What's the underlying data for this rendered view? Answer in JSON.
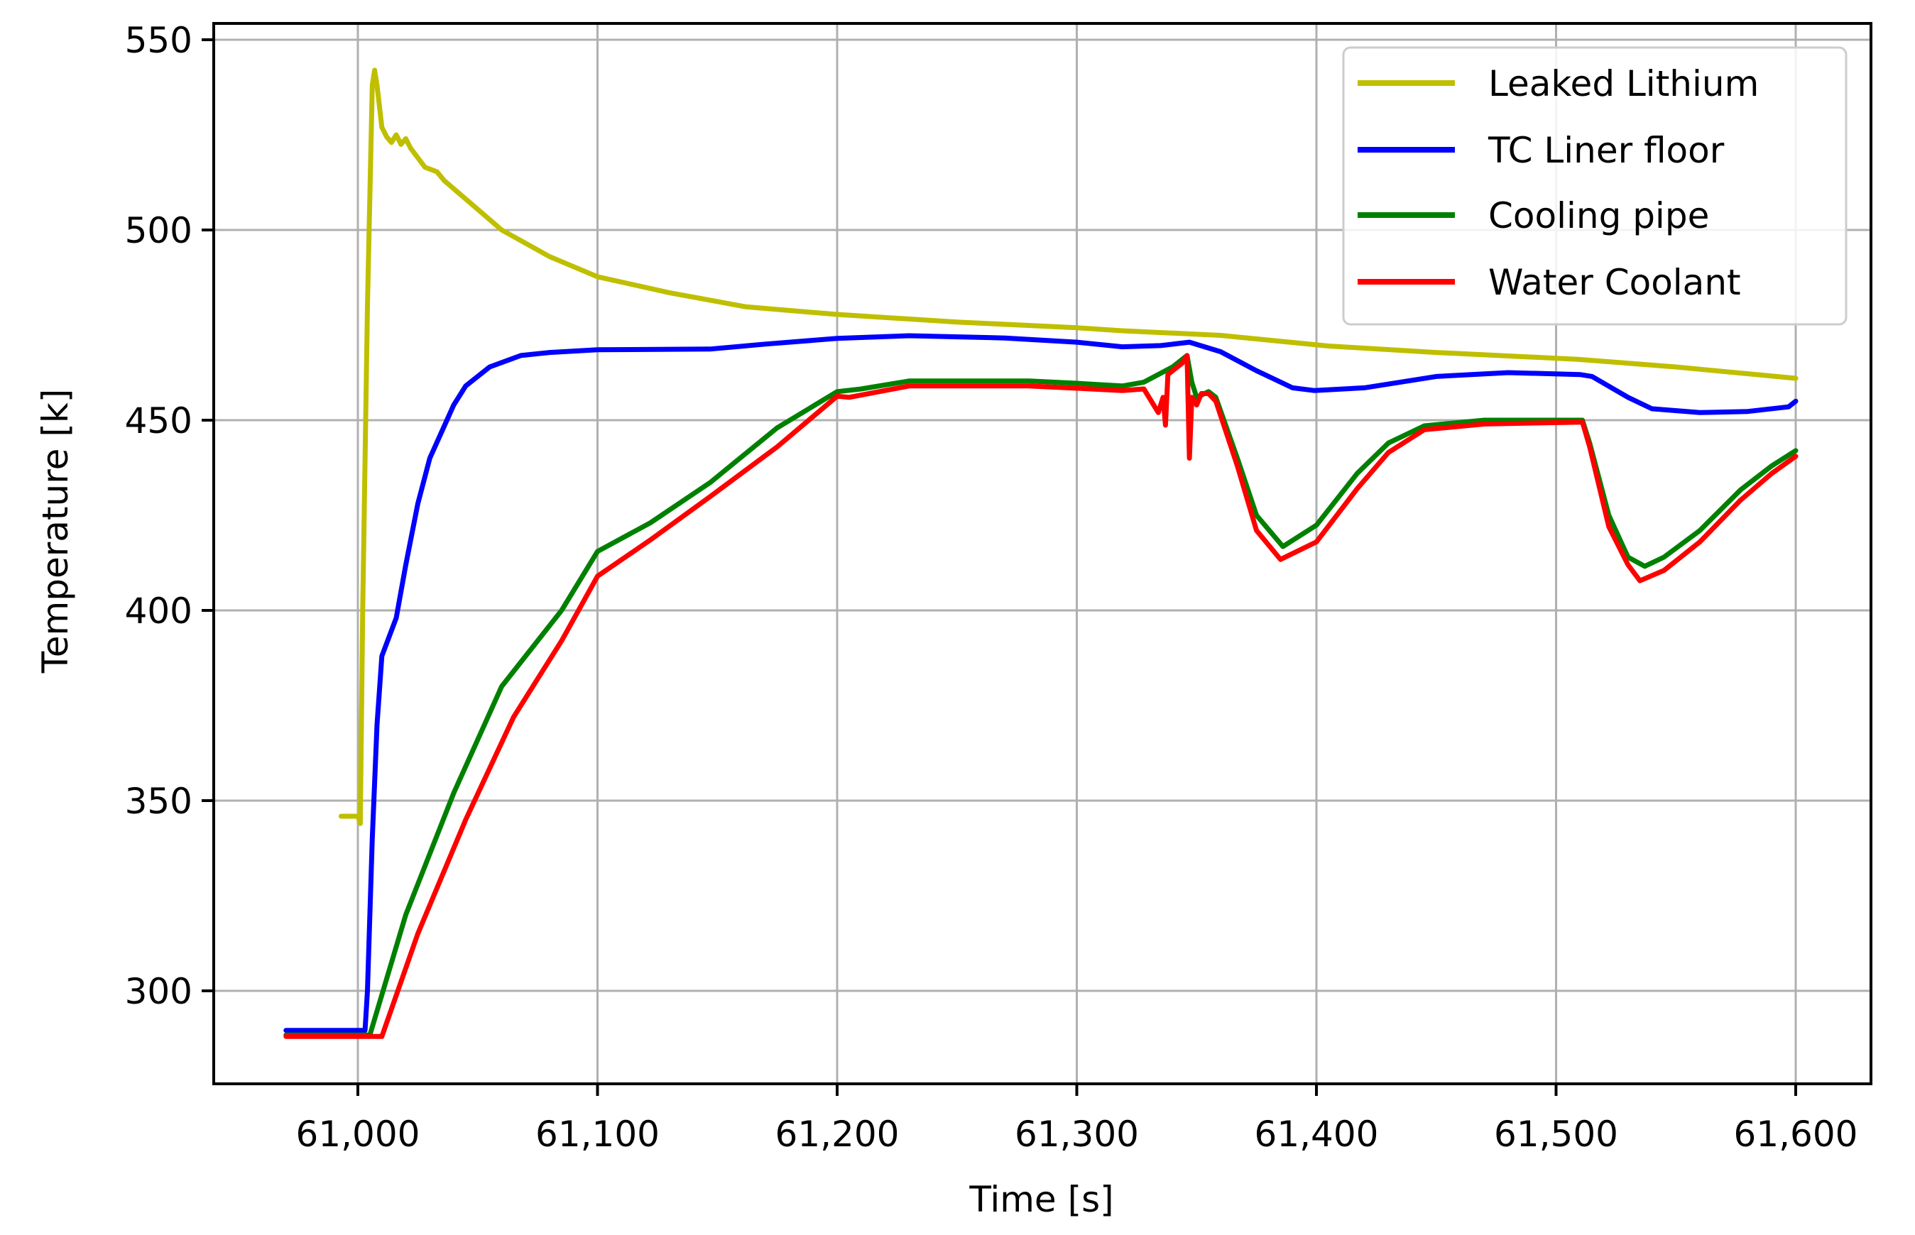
{
  "chart_data": {
    "type": "line",
    "title": "",
    "xlabel": "Time [s]",
    "ylabel": "Temperature [k]",
    "xlim": [
      60940,
      61632
    ],
    "ylim": [
      275.5,
      554.5
    ],
    "xticks": [
      61000,
      61100,
      61200,
      61300,
      61400,
      61500,
      61600
    ],
    "xtick_labels": [
      "61,000",
      "61,100",
      "61,200",
      "61,300",
      "61,400",
      "61,500",
      "61,600"
    ],
    "yticks": [
      300,
      350,
      400,
      450,
      500,
      550
    ],
    "ytick_labels": [
      "300",
      "350",
      "400",
      "450",
      "500",
      "550"
    ],
    "grid": true,
    "legend_position": "upper right",
    "series": [
      {
        "name": "Leaked Lithium",
        "color": "#bfbf00",
        "x": [
          60993,
          61000,
          61001,
          61002,
          61004,
          61006,
          61007,
          61008,
          61010,
          61012,
          61014,
          61016,
          61018,
          61020,
          61022,
          61025,
          61028,
          61033,
          61036,
          61046,
          61060,
          61080,
          61100,
          61130,
          61162,
          61200,
          61250,
          61300,
          61319,
          61360,
          61405,
          61450,
          61509,
          61550,
          61600
        ],
        "y": [
          345.9,
          345.9,
          344,
          400,
          480,
          538,
          542,
          538,
          527,
          524.5,
          523,
          525,
          522.5,
          524,
          521.5,
          519,
          516.5,
          515.3,
          513,
          507.6,
          500,
          493,
          487.7,
          483.5,
          479.8,
          477.8,
          475.8,
          474.3,
          473.5,
          472.3,
          469.5,
          467.8,
          466,
          464,
          461
        ]
      },
      {
        "name": "TC Liner floor",
        "color": "#0000ff",
        "x": [
          60970,
          61003,
          61004,
          61006,
          61008,
          61010,
          61013,
          61016,
          61020,
          61025,
          61030,
          61040,
          61045,
          61055,
          61068,
          61080,
          61100,
          61147,
          61170,
          61200,
          61230,
          61270,
          61300,
          61319,
          61335,
          61347,
          61360,
          61375,
          61390,
          61399,
          61420,
          61450,
          61480,
          61510,
          61515,
          61530,
          61540,
          61560,
          61580,
          61597,
          61600
        ],
        "y": [
          289.6,
          289.6,
          300,
          340,
          370,
          388,
          393,
          398,
          412,
          428,
          440,
          454,
          459,
          464,
          467,
          467.8,
          468.5,
          468.7,
          470,
          471.5,
          472.2,
          471.6,
          470.5,
          469.3,
          469.6,
          470.5,
          468,
          463,
          458.5,
          457.8,
          458.5,
          461.5,
          462.5,
          462,
          461.5,
          456,
          453,
          452,
          452.3,
          453.5,
          455
        ]
      },
      {
        "name": "Cooling pipe",
        "color": "#008000",
        "x": [
          60970,
          61005,
          61020,
          61040,
          61060,
          61085,
          61100,
          61122,
          61147,
          61175,
          61200,
          61210,
          61230,
          61280,
          61300,
          61319,
          61328,
          61340,
          61346,
          61348,
          61350,
          61355,
          61358,
          61367,
          61375,
          61386,
          61400,
          61417,
          61430,
          61445,
          61470,
          61511,
          61514,
          61522,
          61530,
          61537,
          61545,
          61560,
          61577,
          61590,
          61600
        ],
        "y": [
          288.4,
          288.4,
          320,
          352,
          380,
          400,
          415.5,
          423,
          433.6,
          448,
          457.5,
          458.2,
          460.3,
          460.3,
          459.7,
          459,
          460,
          464,
          467,
          460,
          456,
          457.5,
          456,
          440,
          425,
          416.8,
          422.4,
          436,
          444,
          448.5,
          450,
          450,
          444,
          425,
          414,
          411.6,
          414,
          421,
          431.7,
          438,
          442
        ]
      },
      {
        "name": "Water Coolant",
        "color": "#ff0000",
        "x": [
          60970,
          61010,
          61025,
          61045,
          61065,
          61085,
          61100,
          61122,
          61147,
          61175,
          61200,
          61205,
          61230,
          61280,
          61300,
          61319,
          61328,
          61334,
          61336,
          61337,
          61338,
          61340,
          61344,
          61346,
          61347,
          61348,
          61350,
          61352,
          61355,
          61358,
          61367,
          61375,
          61385,
          61400,
          61417,
          61430,
          61445,
          61470,
          61511,
          61514,
          61522,
          61530,
          61535,
          61545,
          61560,
          61577,
          61590,
          61600
        ],
        "y": [
          288,
          288,
          315,
          345,
          372,
          392,
          409,
          418.5,
          429.9,
          443,
          456.3,
          456,
          459,
          459,
          458.4,
          457.8,
          458.2,
          452,
          456,
          448.7,
          462,
          463,
          465,
          467,
          440,
          456,
          454,
          457,
          457,
          455,
          438,
          421,
          413.4,
          418,
          432,
          441.5,
          447.5,
          449,
          449.5,
          443,
          422,
          412,
          407.8,
          410.5,
          418,
          429,
          436,
          440.5
        ]
      }
    ]
  },
  "axes": {
    "xlabel": "Time [s]",
    "ylabel": "Temperature [k]"
  },
  "legend": {
    "items": [
      {
        "label": "Leaked Lithium",
        "color": "#bfbf00"
      },
      {
        "label": "TC Liner floor",
        "color": "#0000ff"
      },
      {
        "label": "Cooling pipe",
        "color": "#008000"
      },
      {
        "label": "Water Coolant",
        "color": "#ff0000"
      }
    ]
  }
}
